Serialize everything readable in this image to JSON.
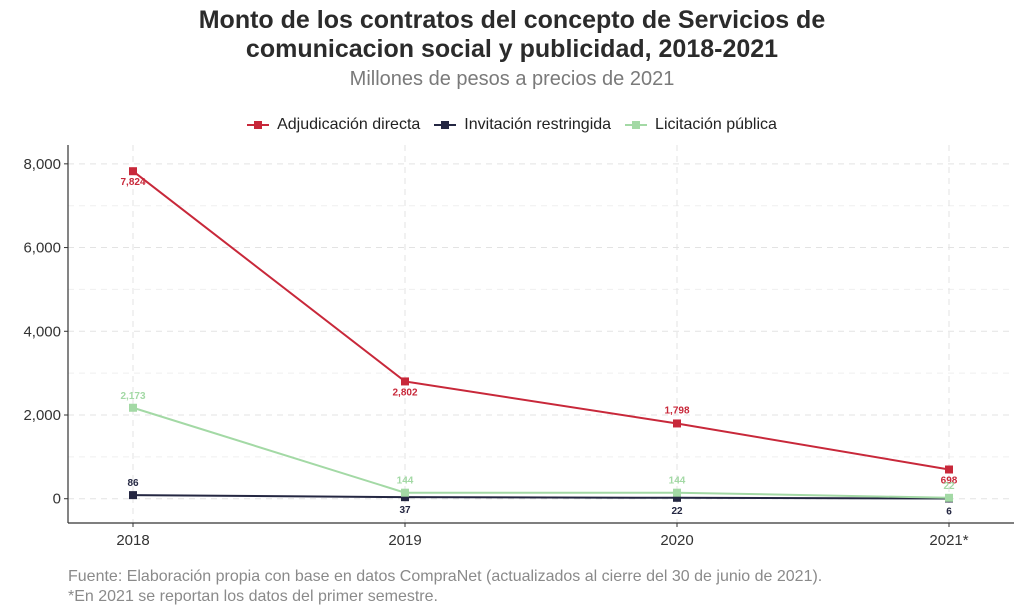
{
  "chart_data": {
    "type": "line",
    "title": "Monto de los contratos del concepto de Servicios de comunicacion social y publicidad, 2018-2021",
    "title_lines": [
      "Monto de los contratos del concepto de Servicios de",
      "comunicacion social y publicidad, 2018-2021"
    ],
    "subtitle": "Millones de pesos a precios de 2021",
    "categories": [
      "2018",
      "2019",
      "2020",
      "2021*"
    ],
    "y_ticks": [
      0,
      2000,
      4000,
      6000,
      8000
    ],
    "y_tick_labels": [
      "0",
      "2,000",
      "4,000",
      "6,000",
      "8,000"
    ],
    "ylim": [
      -580,
      8450
    ],
    "xlabel": "",
    "ylabel": "",
    "grid": true,
    "legend_position": "top",
    "series": [
      {
        "name": "Adjudicación directa",
        "color": "#c8283a",
        "values": [
          7824,
          2802,
          1798,
          698
        ],
        "labels": [
          "7,824",
          "2,802",
          "1,798",
          "698"
        ]
      },
      {
        "name": "Invitación restringida",
        "color": "#242742",
        "values": [
          86,
          37,
          22,
          6
        ],
        "labels": [
          "86",
          "37",
          "22",
          "6"
        ]
      },
      {
        "name": "Licitación pública",
        "color": "#a3d9a5",
        "values": [
          2173,
          144,
          144,
          22
        ],
        "labels": [
          "2,173",
          "144",
          "144",
          "22"
        ]
      }
    ]
  },
  "footer": {
    "source": "Fuente: Elaboración propia con base en datos CompraNet (actualizados al cierre del 30 de junio de 2021).",
    "note": "*En 2021 se reportan los datos del primer semestre."
  }
}
